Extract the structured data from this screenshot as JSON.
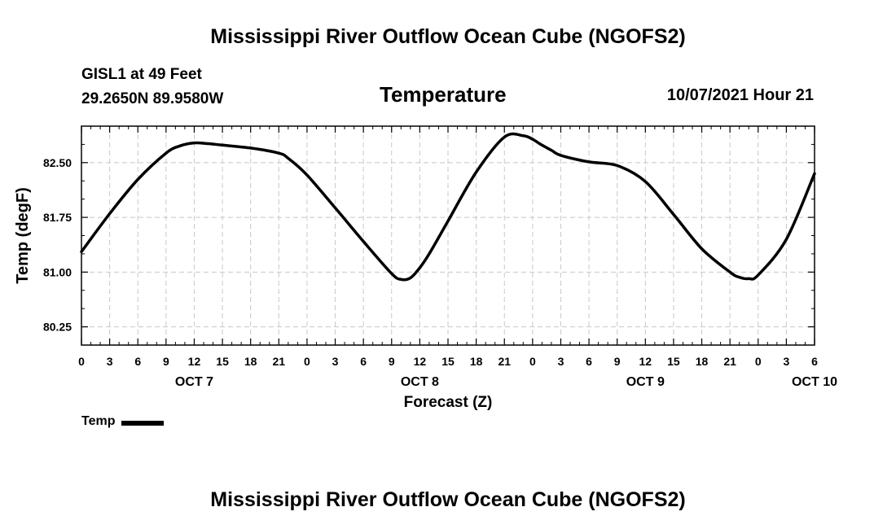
{
  "header": {
    "title": "Mississippi River Outflow Ocean Cube (NGOFS2)",
    "station": "GISL1 at 49 Feet",
    "coords": "29.2650N  89.9580W",
    "datetime": "10/07/2021 Hour 21"
  },
  "footer": {
    "title": "Mississippi River Outflow Ocean Cube (NGOFS2)"
  },
  "chart_data": {
    "type": "line",
    "title": "Temperature",
    "xlabel": "Forecast (Z)",
    "ylabel": "Temp (degF)",
    "x_unit": "hours from OCT 7 00Z",
    "xlim": [
      0,
      78
    ],
    "ylim": [
      80.0,
      83.0
    ],
    "y_ticks": [
      80.25,
      81.0,
      81.75,
      82.5
    ],
    "y_tick_labels": [
      "80.25",
      "81.00",
      "81.75",
      "82.50"
    ],
    "x_tick_hours": [
      0,
      3,
      6,
      9,
      12,
      15,
      18,
      21,
      24,
      27,
      30,
      33,
      36,
      39,
      42,
      45,
      48,
      51,
      54,
      57,
      60,
      63,
      66,
      69,
      72,
      75,
      78
    ],
    "x_tick_labels": [
      "0",
      "3",
      "6",
      "9",
      "12",
      "15",
      "18",
      "21",
      "0",
      "3",
      "6",
      "9",
      "12",
      "15",
      "18",
      "21",
      "0",
      "3",
      "6",
      "9",
      "12",
      "15",
      "18",
      "21",
      "0",
      "3",
      "6"
    ],
    "day_labels": [
      {
        "hour": 12,
        "label": "OCT 7"
      },
      {
        "hour": 36,
        "label": "OCT 8"
      },
      {
        "hour": 60,
        "label": "OCT 9"
      },
      {
        "hour": 78,
        "label": "OCT 10"
      }
    ],
    "grid": true,
    "series": [
      {
        "name": "Temp",
        "x": [
          0,
          3,
          6,
          9,
          10.5,
          12,
          13.5,
          15,
          18,
          21,
          22,
          24,
          27,
          30,
          33,
          34,
          35,
          36,
          37,
          39,
          42,
          45,
          47,
          48,
          49,
          50,
          51,
          54,
          57,
          60,
          63,
          66,
          69,
          70,
          71,
          72,
          75,
          78
        ],
        "y": [
          81.28,
          81.8,
          82.27,
          82.63,
          82.73,
          82.77,
          82.76,
          82.74,
          82.7,
          82.63,
          82.56,
          82.33,
          81.88,
          81.42,
          80.98,
          80.9,
          80.92,
          81.06,
          81.25,
          81.7,
          82.37,
          82.85,
          82.87,
          82.82,
          82.74,
          82.67,
          82.6,
          82.51,
          82.46,
          82.24,
          81.79,
          81.32,
          81.0,
          80.93,
          80.91,
          80.96,
          81.45,
          82.35
        ]
      }
    ],
    "legend": {
      "label": "Temp",
      "position": "bottom-left"
    }
  }
}
